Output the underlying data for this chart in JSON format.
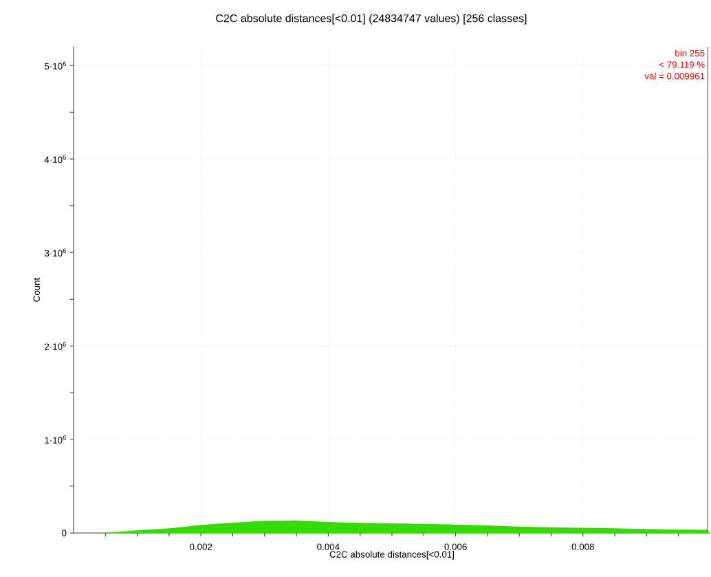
{
  "chart_data": {
    "type": "area",
    "title": "C2C absolute distances[<0.01] (24834747 values)  [256 classes]",
    "xlabel": "C2C absolute distances[<0.01]",
    "ylabel": "Count",
    "x": [
      0,
      0.0005,
      0.001,
      0.0015,
      0.002,
      0.0025,
      0.003,
      0.0035,
      0.004,
      0.0045,
      0.005,
      0.0055,
      0.006,
      0.0065,
      0.007,
      0.0075,
      0.008,
      0.0085,
      0.009,
      0.0095,
      0.00996
    ],
    "values": [
      0,
      2000,
      30000,
      49000,
      86000,
      110000,
      130000,
      135000,
      118000,
      108000,
      103000,
      98000,
      90000,
      81000,
      68000,
      61000,
      56000,
      49000,
      42000,
      37000,
      35000
    ],
    "color": "#33dd00",
    "xlim": [
      0,
      0.01
    ],
    "ylim": [
      0,
      5200000
    ],
    "xticks": [
      {
        "value": 0.0005,
        "label": null
      },
      {
        "value": 0.001,
        "label": null
      },
      {
        "value": 0.0015,
        "label": null
      },
      0.002,
      {
        "value": 0.0025,
        "label": null
      },
      {
        "value": 0.003,
        "label": null
      },
      {
        "value": 0.0035,
        "label": null
      },
      0.004,
      {
        "value": 0.0045,
        "label": null
      },
      {
        "value": 0.005,
        "label": null
      },
      {
        "value": 0.0055,
        "label": null
      },
      0.006,
      {
        "value": 0.0065,
        "label": null
      },
      {
        "value": 0.007,
        "label": null
      },
      {
        "value": 0.0075,
        "label": null
      },
      0.008,
      {
        "value": 0.0085,
        "label": null
      },
      {
        "value": 0.009,
        "label": null
      },
      {
        "value": 0.0095,
        "label": null
      }
    ],
    "yticks": [
      0,
      {
        "value": 500000,
        "label": null
      },
      {
        "value": 1000000,
        "label": "1·10$^{6}$"
      },
      {
        "value": 1500000,
        "label": null
      },
      {
        "value": 2000000,
        "label": "2·10$^{6}$"
      },
      {
        "value": 2500000,
        "label": null
      },
      {
        "value": 3000000,
        "label": "3·10$^{6}$"
      },
      {
        "value": 3500000,
        "label": null
      },
      {
        "value": 4000000,
        "label": "4·10$^{6}$"
      },
      {
        "value": 4500000,
        "label": null
      },
      {
        "value": 5000000,
        "label": "5·10$^{6}$"
      }
    ],
    "grid": true,
    "ref_lines": [
      {
        "axis": "x",
        "value": 0.009961,
        "color": "#ff0000",
        "label": [
          "bin 255",
          "< 79.119 %",
          "val = 0.009961"
        ]
      }
    ]
  }
}
